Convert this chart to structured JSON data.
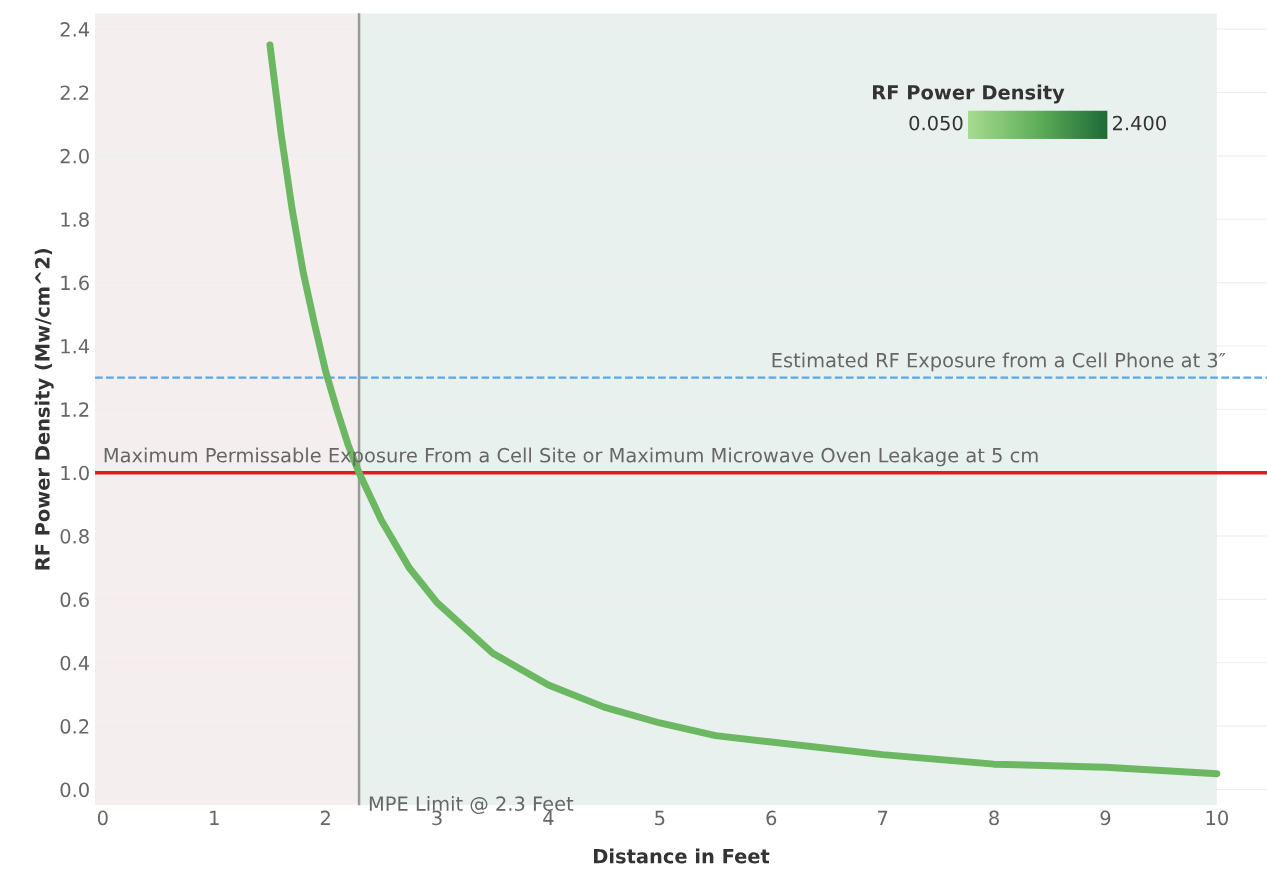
{
  "chart_data": {
    "type": "line",
    "xlabel": "Distance in Feet",
    "ylabel": "RF Power Density (Mw/cm^2)",
    "clabel": "RF Power Density",
    "x": [
      1.5,
      1.6,
      1.7,
      1.8,
      1.9,
      2.0,
      2.1,
      2.2,
      2.3,
      2.5,
      2.75,
      3,
      3.5,
      4,
      4.5,
      5,
      5.5,
      6,
      7,
      8,
      9,
      10
    ],
    "series": [
      {
        "color": "#6cb862",
        "values": [
          2.35,
          2.07,
          1.83,
          1.63,
          1.47,
          1.32,
          1.2,
          1.09,
          1.0,
          0.85,
          0.7,
          0.59,
          0.43,
          0.33,
          0.26,
          0.21,
          0.17,
          0.15,
          0.11,
          0.08,
          0.07,
          0.05
        ]
      }
    ],
    "annotations": [
      "0.050",
      "2.400"
    ],
    "xlim": [
      -0.07,
      10.45
    ],
    "ylim": [
      -0.05,
      2.45
    ],
    "xticks": [
      0,
      1,
      2,
      3,
      4,
      5,
      6,
      7,
      8,
      9,
      10
    ],
    "yticks": [
      {
        "value": 0,
        "label": "0.0"
      },
      {
        "value": 0.2,
        "label": "0.2"
      },
      {
        "value": 0.4,
        "label": "0.4"
      },
      {
        "value": 0.6,
        "label": "0.6"
      },
      {
        "value": 0.8,
        "label": "0.8"
      },
      {
        "value": 1.0,
        "label": "1.0"
      },
      {
        "value": 1.2,
        "label": "1.2"
      },
      {
        "value": 1.4,
        "label": "1.4"
      },
      {
        "value": 1.6,
        "label": "1.6"
      },
      {
        "value": 1.8,
        "label": "1.8"
      },
      {
        "value": 2.0,
        "label": "2.0"
      },
      {
        "value": 2.2,
        "label": "2.2"
      },
      {
        "value": 2.4,
        "label": "2.4"
      }
    ],
    "grid": "y",
    "bands": [
      {
        "axis": "x",
        "from": -0.07,
        "to": 2.3,
        "label": null,
        "color": "#f4eeee"
      },
      {
        "axis": "x",
        "from": 2.3,
        "to": 10.0,
        "label": null,
        "color": "#e8f1ee"
      }
    ],
    "ref_lines": [
      {
        "axis": "y",
        "value": 1.3,
        "label": "Estimated RF Exposure from a Cell Phone at 3″",
        "color": "#5aa7e8",
        "line_style": "dashed"
      },
      {
        "axis": "y",
        "value": 1.0,
        "label": "Maximum Permissable Exposure From a Cell Site or Maximum Microwave Oven Leakage at 5 cm",
        "color": "#e31a1c",
        "line_style": "solid"
      },
      {
        "axis": "x",
        "value": 2.3,
        "label": "MPE Limit @ 2.3 Feet",
        "color": "#999999",
        "line_style": "solid"
      }
    ]
  }
}
